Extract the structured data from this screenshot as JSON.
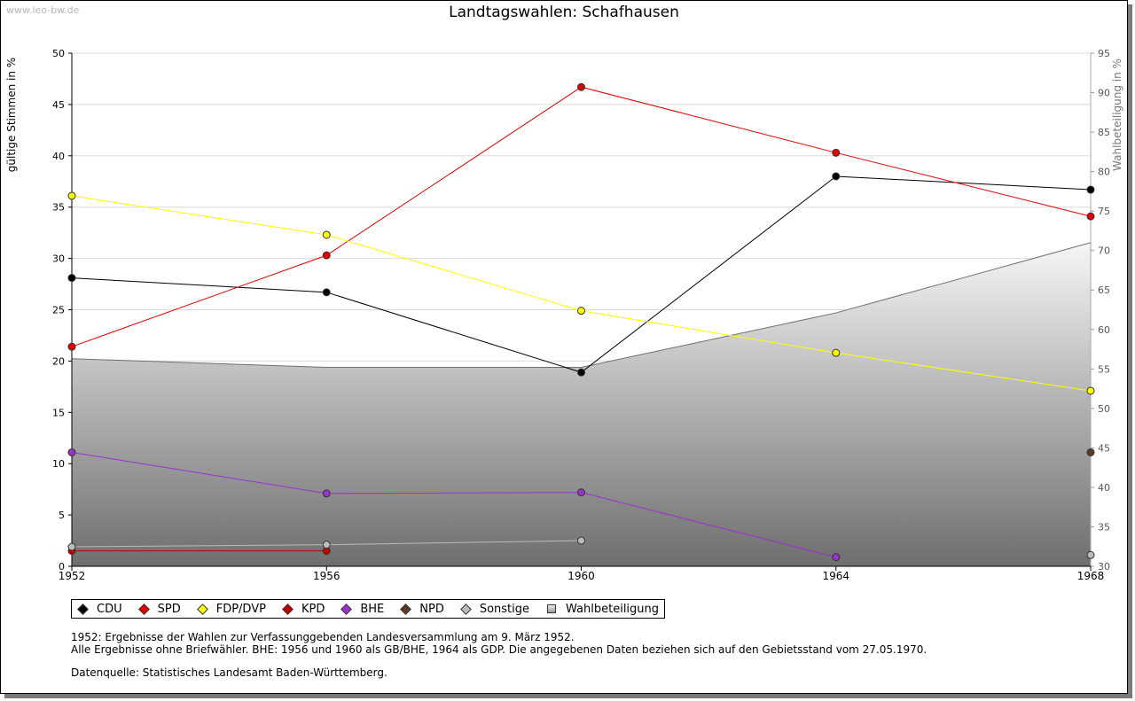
{
  "watermark": "www.leo-bw.de",
  "chart_data": {
    "type": "line",
    "title": "Landtagswahlen: Schafhausen",
    "ylabel": "gültige Stimmen in %",
    "y2label": "Wahlbeteiligung in %",
    "x": [
      1952,
      1956,
      1960,
      1964,
      1968
    ],
    "ylim": [
      0,
      50
    ],
    "y2lim": [
      30,
      95
    ],
    "yticks": [
      0,
      5,
      10,
      15,
      20,
      25,
      30,
      35,
      40,
      45,
      50
    ],
    "y2ticks": [
      30,
      35,
      40,
      45,
      50,
      55,
      60,
      65,
      70,
      75,
      80,
      85,
      90,
      95
    ],
    "grid": true,
    "legend_position": "bottom-left",
    "series": [
      {
        "name": "CDU",
        "color": "#000000",
        "values": [
          28.1,
          26.7,
          18.9,
          38.0,
          36.7
        ]
      },
      {
        "name": "SPD",
        "color": "#e00000",
        "values": [
          21.4,
          30.3,
          46.7,
          40.3,
          34.1
        ]
      },
      {
        "name": "FDP/DVP",
        "color": "#ffff00",
        "values": [
          36.1,
          32.3,
          24.9,
          20.8,
          17.1
        ]
      },
      {
        "name": "KPD",
        "color": "#c00000",
        "values": [
          1.5,
          1.5,
          null,
          null,
          null
        ]
      },
      {
        "name": "BHE",
        "color": "#9933cc",
        "values": [
          11.1,
          7.1,
          7.2,
          0.9,
          null
        ]
      },
      {
        "name": "NPD",
        "color": "#5a3a28",
        "values": [
          null,
          null,
          null,
          null,
          11.1
        ]
      },
      {
        "name": "Sonstige",
        "color": "#bbbbbb",
        "values": [
          1.9,
          2.1,
          2.5,
          null,
          1.1
        ]
      }
    ],
    "turnout": {
      "name": "Wahlbeteiligung",
      "axis": "right",
      "values": [
        56.3,
        55.2,
        55.2,
        62.1,
        71.0
      ]
    }
  },
  "notes": {
    "line1": "1952: Ergebnisse der Wahlen zur Verfassunggebenden Landesversammlung am 9. März 1952.",
    "line2": "Alle Ergebnisse ohne Briefwähler. BHE: 1956 und 1960 als GB/BHE, 1964 als GDP. Die angegebenen Daten beziehen sich auf den Gebietsstand vom 27.05.1970.",
    "line3": "Datenquelle: Statistisches Landesamt Baden-Württemberg."
  }
}
